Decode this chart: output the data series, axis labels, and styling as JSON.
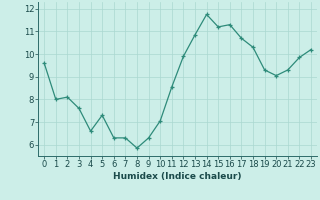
{
  "x": [
    0,
    1,
    2,
    3,
    4,
    5,
    6,
    7,
    8,
    9,
    10,
    11,
    12,
    13,
    14,
    15,
    16,
    17,
    18,
    19,
    20,
    21,
    22,
    23
  ],
  "y": [
    9.6,
    8.0,
    8.1,
    7.6,
    6.6,
    7.3,
    6.3,
    6.3,
    5.85,
    6.3,
    7.05,
    8.55,
    9.9,
    10.85,
    11.75,
    11.2,
    11.3,
    10.7,
    10.3,
    9.3,
    9.05,
    9.3,
    9.85,
    10.2
  ],
  "line_color": "#2e8b7a",
  "marker": "+",
  "bg_color": "#cceee8",
  "grid_color": "#aad8d0",
  "axis_color": "#2e6b6a",
  "text_color": "#1a4a4a",
  "xlabel": "Humidex (Indice chaleur)",
  "ylim": [
    5.5,
    12.3
  ],
  "xlim": [
    -0.5,
    23.5
  ],
  "yticks": [
    6,
    7,
    8,
    9,
    10,
    11,
    12
  ],
  "xticks": [
    0,
    1,
    2,
    3,
    4,
    5,
    6,
    7,
    8,
    9,
    10,
    11,
    12,
    13,
    14,
    15,
    16,
    17,
    18,
    19,
    20,
    21,
    22,
    23
  ],
  "label_fontsize": 6.5,
  "tick_fontsize": 6.0
}
